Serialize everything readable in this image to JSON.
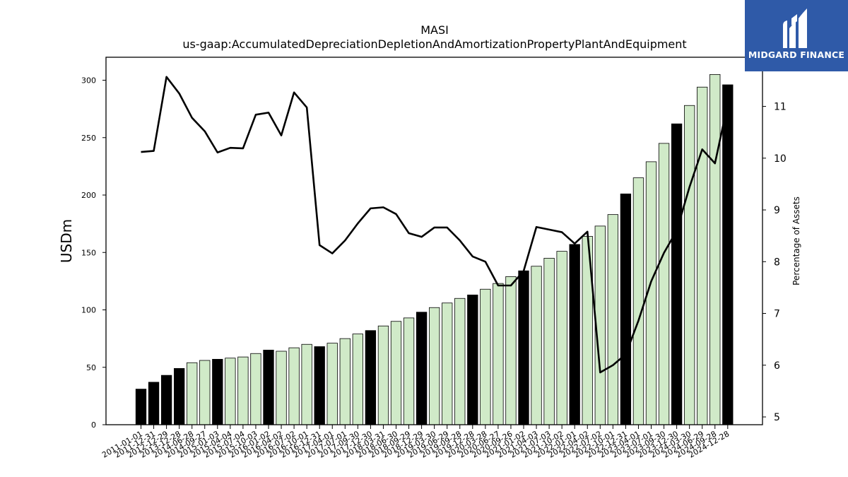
{
  "colors": {
    "bar_highlight": "#000000",
    "bar_normal": "#d0eac8",
    "line": "#000000",
    "logo_bg": "#2f5aa8"
  },
  "logo": {
    "text": "MIDGARD FINANCE",
    "icon": "midgard-logo-icon"
  },
  "chart_data": {
    "type": "bar",
    "title": "MASI",
    "subtitle": "us-gaap:AccumulatedDepreciationDepletionAndAmortizationPropertyPlantAndEquipment",
    "ylabel": "USDm",
    "y2label": "Percentage of Assets",
    "ylim": [
      0,
      320
    ],
    "y2lim": [
      4.85,
      11.95
    ],
    "yticks": [
      0,
      50,
      100,
      150,
      200,
      250,
      300
    ],
    "y2ticks": [
      5,
      6,
      7,
      8,
      9,
      10,
      11
    ],
    "grid": false,
    "categories": [
      "2011-01-01",
      "2011-12-31",
      "2012-12-29",
      "2013-12-28",
      "2014-06-28",
      "2014-09-27",
      "2015-01-03",
      "2015-04-04",
      "2015-07-04",
      "2015-10-03",
      "2016-01-02",
      "2016-04-02",
      "2016-07-02",
      "2016-10-01",
      "2016-12-31",
      "2017-04-01",
      "2017-07-01",
      "2017-09-30",
      "2017-12-30",
      "2018-03-31",
      "2018-06-30",
      "2018-09-29",
      "2018-12-29",
      "2019-03-30",
      "2019-06-29",
      "2019-09-28",
      "2019-12-28",
      "2020-03-28",
      "2020-06-27",
      "2020-09-26",
      "2021-01-02",
      "2021-04-03",
      "2021-07-03",
      "2021-10-02",
      "2022-01-01",
      "2022-04-02",
      "2022-07-02",
      "2022-10-01",
      "2022-12-31",
      "2023-04-01",
      "2023-07-01",
      "2023-09-30",
      "2023-12-30",
      "2024-03-30",
      "2024-06-29",
      "2024-09-28",
      "2024-12-28"
    ],
    "series": [
      {
        "type": "bar",
        "values": [
          31,
          37,
          43,
          49,
          54,
          56,
          57,
          58,
          59,
          62,
          65,
          64,
          67,
          70,
          68,
          71,
          75,
          79,
          82,
          86,
          90,
          93,
          98,
          102,
          106,
          110,
          113,
          118,
          123,
          129,
          134,
          138,
          145,
          151,
          157,
          164,
          173,
          183,
          201,
          215,
          229,
          245,
          262,
          278,
          294,
          305,
          296
        ],
        "highlight": [
          true,
          true,
          true,
          true,
          false,
          false,
          true,
          false,
          false,
          false,
          true,
          false,
          false,
          false,
          true,
          false,
          false,
          false,
          true,
          false,
          false,
          false,
          true,
          false,
          false,
          false,
          true,
          false,
          false,
          false,
          true,
          false,
          false,
          false,
          true,
          false,
          false,
          false,
          true,
          false,
          false,
          false,
          true,
          false,
          false,
          false,
          true
        ]
      },
      {
        "type": "line",
        "axis": "right",
        "values": [
          10.12,
          10.14,
          11.57,
          11.25,
          10.78,
          10.52,
          10.11,
          10.2,
          10.19,
          10.84,
          10.88,
          10.44,
          11.27,
          10.98,
          8.32,
          8.16,
          8.41,
          8.74,
          9.03,
          9.05,
          8.92,
          8.55,
          8.48,
          8.66,
          8.66,
          8.41,
          8.1,
          8.0,
          7.54,
          7.54,
          7.82,
          8.67,
          8.62,
          8.57,
          8.35,
          8.58,
          5.86,
          6.0,
          6.21,
          6.86,
          7.62,
          8.17,
          8.6,
          9.44,
          10.17,
          9.9,
          11.05
        ]
      }
    ]
  }
}
